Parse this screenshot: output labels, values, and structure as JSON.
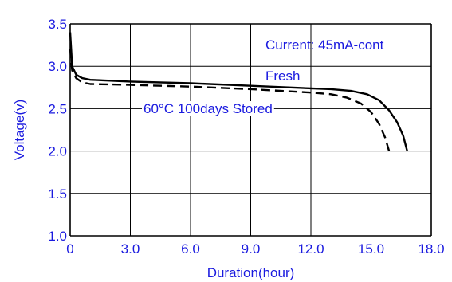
{
  "chart_data": {
    "type": "line",
    "title": "",
    "xlabel": "Duration(hour)",
    "ylabel": "Voltage(v)",
    "xlim": [
      0,
      18
    ],
    "ylim": [
      1.0,
      3.5
    ],
    "x_ticks": [
      "0",
      "3.0",
      "6.0",
      "9.0",
      "12.0",
      "15.0",
      "18.0"
    ],
    "y_ticks": [
      "1.0",
      "1.5",
      "2.0",
      "2.5",
      "3.0",
      "3.5"
    ],
    "grid": true,
    "annotations": {
      "current": "Current: 45mA-cont",
      "fresh": "Fresh",
      "stored": "60°C 100days Stored"
    },
    "series": [
      {
        "name": "Fresh",
        "style": "solid",
        "color": "#000000",
        "points": [
          [
            0,
            3.4
          ],
          [
            0.1,
            3.0
          ],
          [
            0.3,
            2.9
          ],
          [
            0.6,
            2.86
          ],
          [
            1,
            2.84
          ],
          [
            3,
            2.82
          ],
          [
            6,
            2.8
          ],
          [
            9,
            2.77
          ],
          [
            12,
            2.74
          ],
          [
            13,
            2.73
          ],
          [
            14,
            2.71
          ],
          [
            14.8,
            2.67
          ],
          [
            15.4,
            2.6
          ],
          [
            15.9,
            2.48
          ],
          [
            16.3,
            2.34
          ],
          [
            16.6,
            2.18
          ],
          [
            16.8,
            2.0
          ]
        ]
      },
      {
        "name": "60°C 100days Stored",
        "style": "dashed",
        "color": "#000000",
        "points": [
          [
            0,
            3.2
          ],
          [
            0.1,
            2.95
          ],
          [
            0.3,
            2.86
          ],
          [
            0.6,
            2.81
          ],
          [
            1,
            2.79
          ],
          [
            3,
            2.78
          ],
          [
            6,
            2.76
          ],
          [
            9,
            2.73
          ],
          [
            12,
            2.69
          ],
          [
            13,
            2.67
          ],
          [
            13.8,
            2.63
          ],
          [
            14.5,
            2.56
          ],
          [
            15.0,
            2.46
          ],
          [
            15.4,
            2.32
          ],
          [
            15.7,
            2.16
          ],
          [
            15.9,
            2.0
          ]
        ]
      }
    ]
  }
}
